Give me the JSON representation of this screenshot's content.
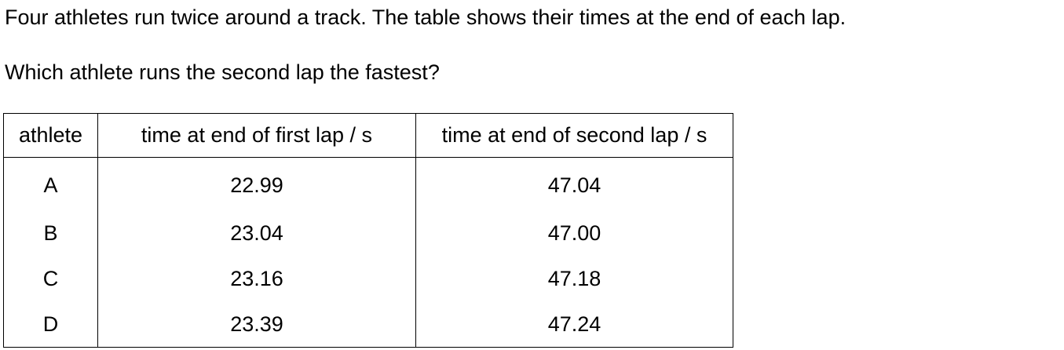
{
  "intro": "Four athletes run twice around a track. The table shows their times at the end of each lap.",
  "question": "Which athlete runs the second lap the fastest?",
  "table": {
    "headers": [
      "athlete",
      "time at end of first lap / s",
      "time at end of second lap / s"
    ],
    "rows": [
      {
        "athlete": "A",
        "lap1": "22.99",
        "lap2": "47.04"
      },
      {
        "athlete": "B",
        "lap1": "23.04",
        "lap2": "47.00"
      },
      {
        "athlete": "C",
        "lap1": "23.16",
        "lap2": "47.18"
      },
      {
        "athlete": "D",
        "lap1": "23.39",
        "lap2": "47.24"
      }
    ]
  }
}
